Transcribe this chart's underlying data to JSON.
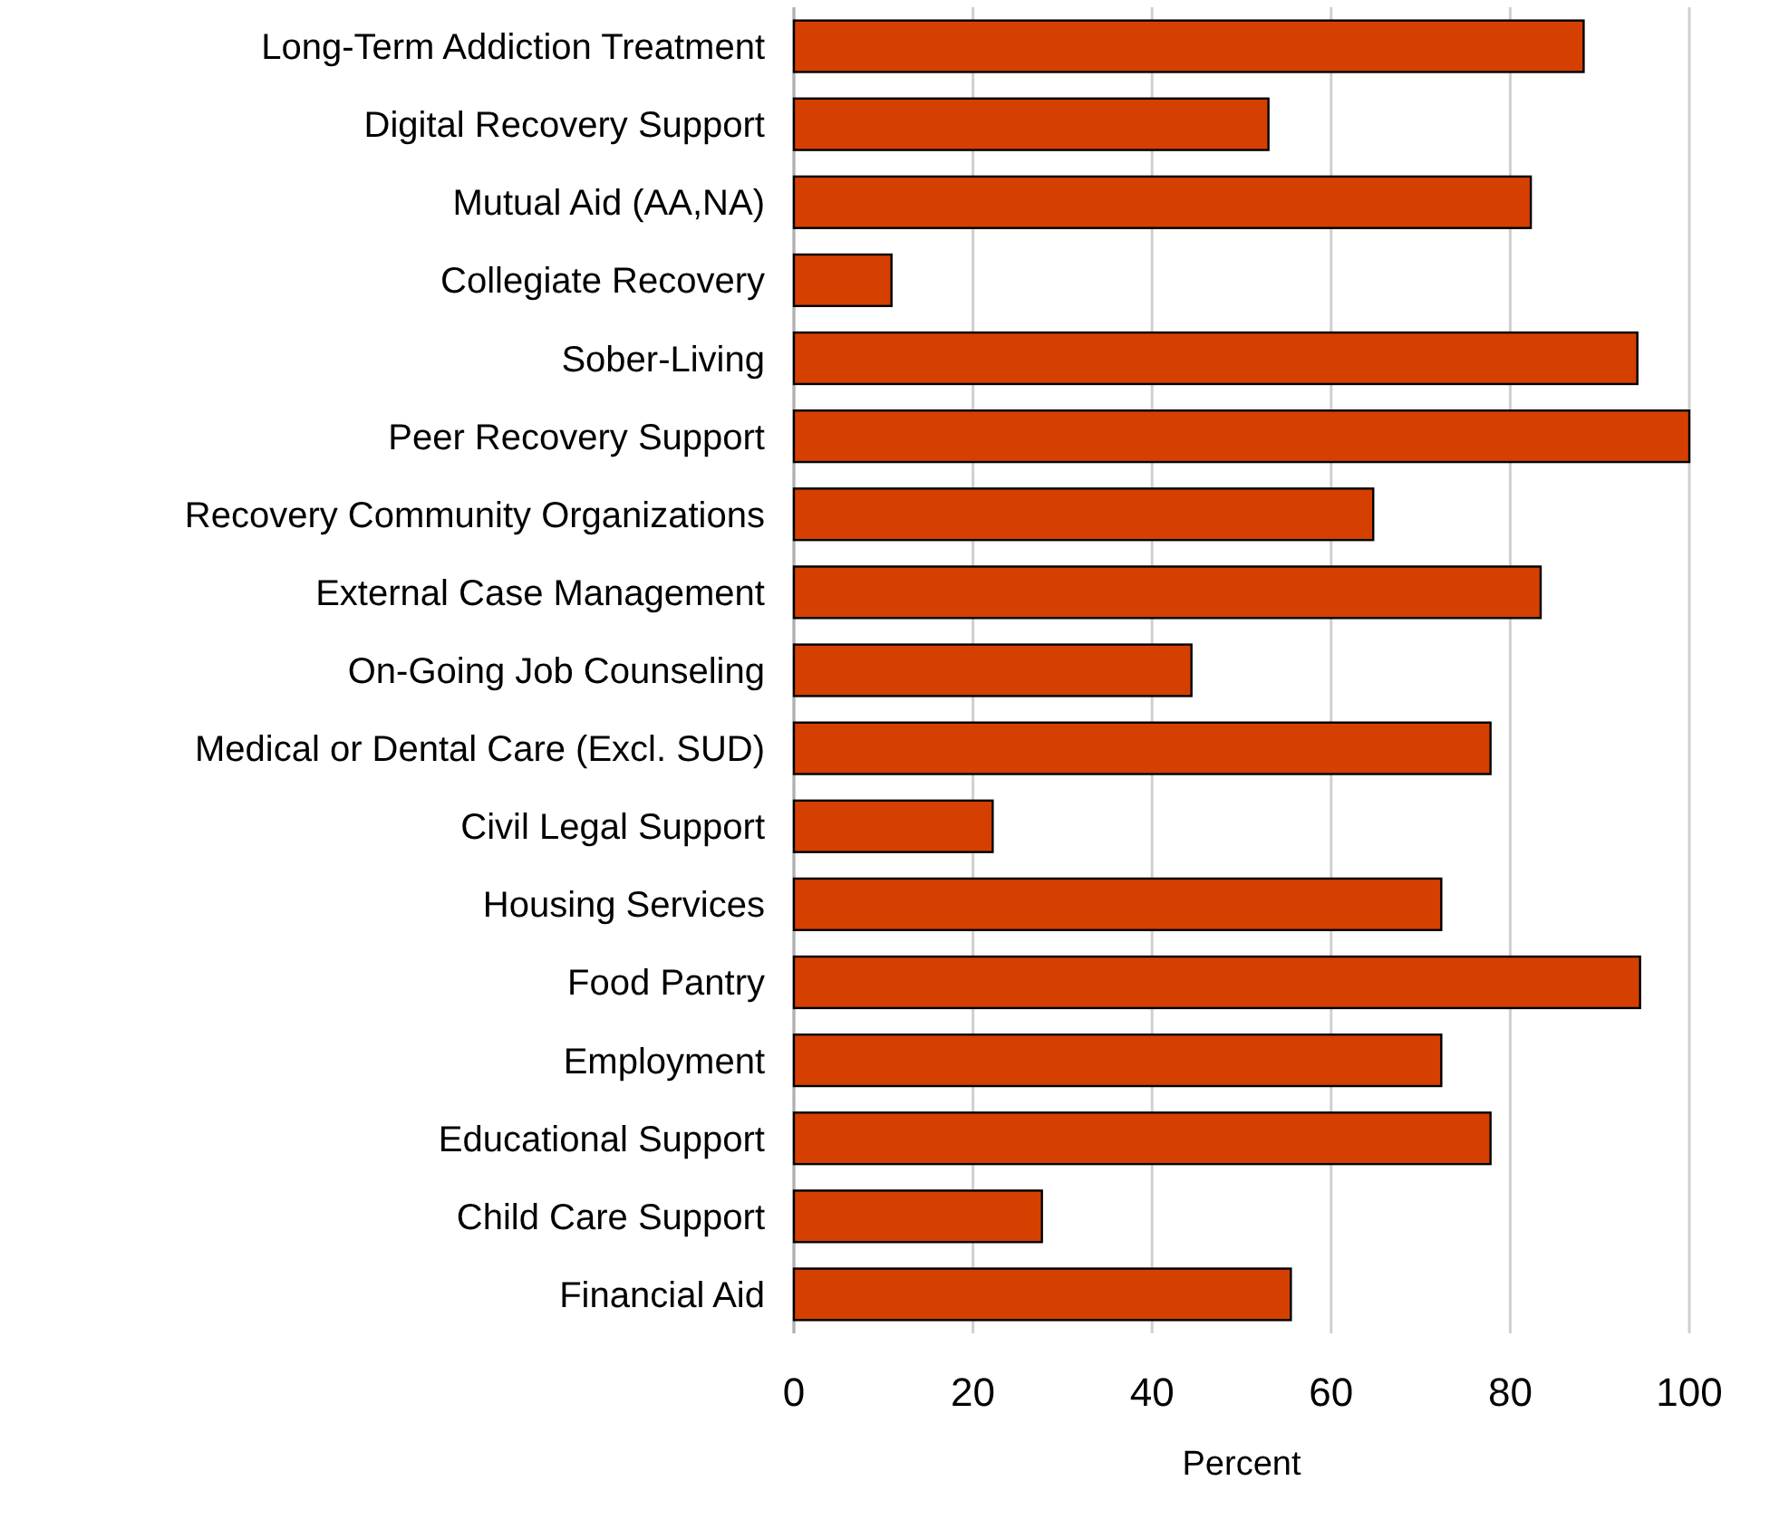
{
  "chart_data": {
    "type": "bar",
    "orientation": "horizontal",
    "xlabel": "Percent",
    "categories": [
      "Long-Term Addiction Treatment",
      "Digital Recovery Support",
      "Mutual Aid (AA,NA)",
      "Collegiate Recovery",
      "Sober-Living",
      "Peer Recovery Support",
      "Recovery Community Organizations",
      "External Case Management",
      "On-Going Job Counseling",
      "Medical or Dental Care (Excl. SUD)",
      "Civil Legal Support",
      "Housing Services",
      "Food Pantry",
      "Employment",
      "Educational Support",
      "Child Care Support",
      "Financial Aid"
    ],
    "values": [
      88.2,
      53.0,
      82.3,
      10.9,
      94.2,
      100,
      64.7,
      83.4,
      44.4,
      77.8,
      22.2,
      72.3,
      94.5,
      72.3,
      77.8,
      27.7,
      55.5
    ],
    "color": "#d54000",
    "xlim": [
      0,
      100
    ],
    "xticks": [
      0,
      20,
      40,
      60,
      80,
      100
    ],
    "grid": "x"
  }
}
